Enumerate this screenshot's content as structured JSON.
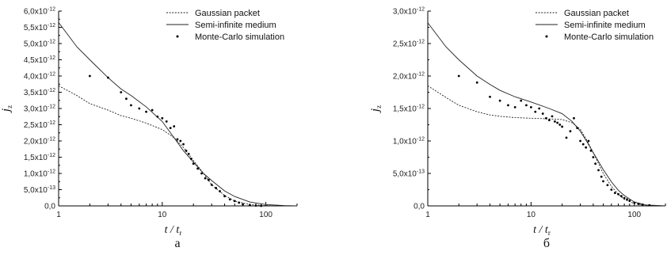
{
  "chart_data": [
    {
      "type": "line",
      "caption": "а",
      "xlabel": "t / t",
      "xlabel_sub": "r",
      "ylabel": "j",
      "ylabel_sub": "z",
      "x_scale": "log",
      "xlim": [
        1,
        200
      ],
      "ylim": [
        0,
        6e-12
      ],
      "x_tick_labels": [
        "1",
        "10",
        "100"
      ],
      "y_tick_labels": [
        "0,0",
        "5,0x10-13",
        "1,0x10-12",
        "1,5x10-12",
        "2,0x10-12",
        "2,5x10-12",
        "3,0x10-12",
        "3,5x10-12",
        "4,0x10-12",
        "4,5x10-12",
        "5,0x10-12",
        "5,5x10-12",
        "6,0x10-12"
      ],
      "legend_position": "top-right",
      "grid": false,
      "series": [
        {
          "name": "Gaussian packet",
          "style": "dashed",
          "x": [
            1,
            1.5,
            2,
            3,
            4,
            5,
            7,
            10,
            13,
            16,
            20,
            25,
            30,
            40,
            50,
            70,
            100,
            150,
            200
          ],
          "y": [
            3.7e-12,
            3.4e-12,
            3.15e-12,
            2.95e-12,
            2.78e-12,
            2.7e-12,
            2.55e-12,
            2.35e-12,
            2.1e-12,
            1.8e-12,
            1.4e-12,
            1e-12,
            6.5e-13,
            3.2e-13,
            1.5e-13,
            4e-14,
            1e-14,
            0,
            0
          ]
        },
        {
          "name": "Semi-infinite medium",
          "style": "solid",
          "x": [
            1,
            1.5,
            2,
            3,
            4,
            5,
            7,
            10,
            13,
            16,
            20,
            25,
            30,
            40,
            50,
            70,
            100,
            150,
            200
          ],
          "y": [
            5.65e-12,
            4.9e-12,
            4.5e-12,
            3.95e-12,
            3.6e-12,
            3.4e-12,
            3.05e-12,
            2.6e-12,
            2.1e-12,
            1.7e-12,
            1.35e-12,
            1e-12,
            7.8e-13,
            4.6e-13,
            2.9e-13,
            1.2e-13,
            4e-14,
            1e-14,
            0
          ]
        },
        {
          "name": "Monte-Carlo simulation",
          "style": "markers",
          "x": [
            2,
            3,
            4,
            4.5,
            5,
            6,
            7,
            8,
            9,
            10,
            11,
            12,
            13,
            14,
            15,
            16,
            17,
            18,
            19,
            20,
            22,
            24,
            26,
            28,
            30,
            33,
            36,
            40,
            45,
            50,
            55,
            60,
            70,
            80,
            90
          ],
          "y": [
            4e-12,
            3.95e-12,
            3.5e-12,
            3.3e-12,
            3.1e-12,
            3e-12,
            2.9e-12,
            2.95e-12,
            2.75e-12,
            2.7e-12,
            2.6e-12,
            2.4e-12,
            2.45e-12,
            2.05e-12,
            2e-12,
            1.9e-12,
            1.7e-12,
            1.6e-12,
            1.45e-12,
            1.3e-12,
            1.15e-12,
            1e-12,
            8.5e-13,
            8e-13,
            6.5e-13,
            5.5e-13,
            4.5e-13,
            3e-13,
            2e-13,
            1.5e-13,
            1e-13,
            5e-14,
            2e-14,
            1e-14,
            0
          ]
        }
      ]
    },
    {
      "type": "line",
      "caption": "б",
      "xlabel": "t / t",
      "xlabel_sub": "r",
      "ylabel": "j",
      "ylabel_sub": "z",
      "x_scale": "log",
      "xlim": [
        1,
        200
      ],
      "ylim": [
        0,
        3e-12
      ],
      "x_tick_labels": [
        "1",
        "10",
        "100"
      ],
      "y_tick_labels": [
        "0,0",
        "5,0x10-13",
        "1,0x10-12",
        "1,5x10-12",
        "2,0x10-12",
        "2,5x10-12",
        "3,0x10-12"
      ],
      "legend_position": "top-right",
      "grid": false,
      "series": [
        {
          "name": "Gaussian packet",
          "style": "dashed",
          "x": [
            1,
            1.5,
            2,
            3,
            4,
            5,
            7,
            10,
            15,
            20,
            25,
            30,
            35,
            40,
            50,
            60,
            70,
            80,
            100,
            130,
            200
          ],
          "y": [
            1.85e-12,
            1.67e-12,
            1.55e-12,
            1.45e-12,
            1.4e-12,
            1.38e-12,
            1.36e-12,
            1.35e-12,
            1.34e-12,
            1.33e-12,
            1.28e-12,
            1.18e-12,
            1e-12,
            8.2e-13,
            5e-13,
            3e-13,
            1.8e-13,
            1e-13,
            3.5e-14,
            1e-14,
            0
          ]
        },
        {
          "name": "Semi-infinite medium",
          "style": "solid",
          "x": [
            1,
            1.5,
            2,
            3,
            4,
            5,
            7,
            10,
            15,
            20,
            25,
            30,
            35,
            40,
            50,
            60,
            70,
            80,
            100,
            130,
            200
          ],
          "y": [
            2.82e-12,
            2.45e-12,
            2.25e-12,
            2e-12,
            1.87e-12,
            1.78e-12,
            1.68e-12,
            1.6e-12,
            1.5e-12,
            1.42e-12,
            1.3e-12,
            1.15e-12,
            9.8e-13,
            8.2e-13,
            5.6e-13,
            3.7e-13,
            2.4e-13,
            1.6e-13,
            6e-14,
            1.5e-14,
            0
          ]
        },
        {
          "name": "Monte-Carlo simulation",
          "style": "markers",
          "x": [
            2,
            3,
            4,
            5,
            6,
            7,
            8,
            9,
            10,
            11,
            12,
            13,
            14,
            15,
            16,
            17,
            18,
            19,
            20,
            22,
            24,
            26,
            28,
            30,
            32,
            34,
            36,
            38,
            40,
            42,
            45,
            48,
            50,
            55,
            60,
            65,
            70,
            75,
            80,
            85,
            90,
            100,
            110,
            120,
            140
          ],
          "y": [
            2e-12,
            1.9e-12,
            1.68e-12,
            1.62e-12,
            1.55e-12,
            1.52e-12,
            1.62e-12,
            1.55e-12,
            1.52e-12,
            1.45e-12,
            1.5e-12,
            1.42e-12,
            1.35e-12,
            1.32e-12,
            1.38e-12,
            1.3e-12,
            1.28e-12,
            1.25e-12,
            1.22e-12,
            1.05e-12,
            1.15e-12,
            1.35e-12,
            1.2e-12,
            1e-12,
            9.5e-13,
            9e-13,
            1e-12,
            8.5e-13,
            7.5e-13,
            6.5e-13,
            5.5e-13,
            4.5e-13,
            3.8e-13,
            3.2e-13,
            2.5e-13,
            2e-13,
            1.8e-13,
            1.5e-13,
            1.2e-13,
            1e-13,
            8e-14,
            5e-14,
            3e-14,
            2e-14,
            1e-14
          ]
        }
      ]
    }
  ]
}
